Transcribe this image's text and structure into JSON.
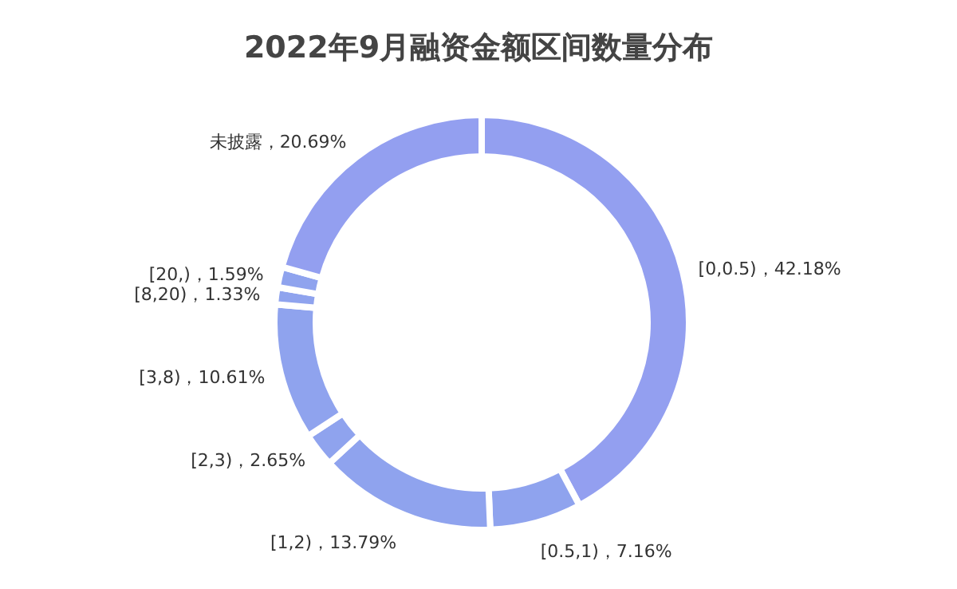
{
  "chart_data": {
    "type": "donut",
    "title": "2022年9月融资金额区间数量分布",
    "categories": [
      "[0,0.5)",
      "[0.5,1)",
      "[1,2)",
      "[2,3)",
      "[3,8)",
      "[8,20)",
      "[20,)",
      "未披露"
    ],
    "values": [
      42.18,
      7.16,
      13.79,
      2.65,
      10.61,
      1.33,
      1.59,
      20.69
    ],
    "value_labels": [
      "42.18%",
      "7.16%",
      "13.79%",
      "2.65%",
      "10.61%",
      "1.33%",
      "1.59%",
      "20.69%"
    ],
    "colors": [
      "#939ff0",
      "#8fa3ee",
      "#8fa3ee",
      "#8fa3ee",
      "#8fa3ee",
      "#8fa3ee",
      "#8fa3ee",
      "#939ff0"
    ]
  }
}
